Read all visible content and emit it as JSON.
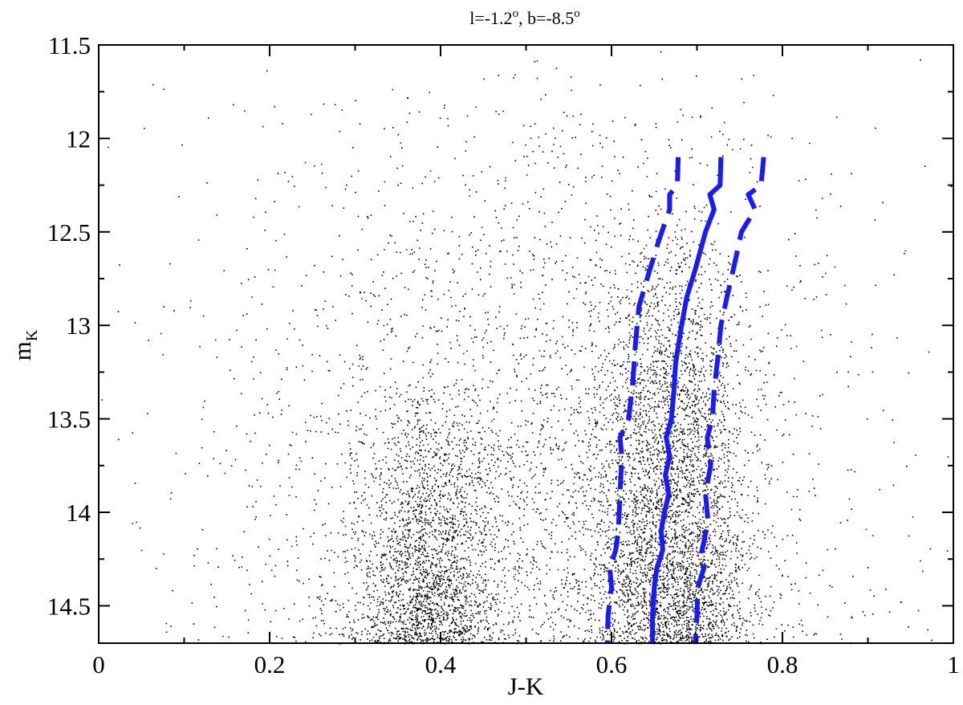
{
  "chart_data": {
    "type": "scatter",
    "title_main": "l=-1.2",
    "title_sup1": "o",
    "title_mid": ", b=-8.5",
    "title_sup2": "o",
    "xlabel": "J-K",
    "ylabel_main": "m",
    "ylabel_sub": "K",
    "xlim": [
      0,
      1
    ],
    "ylim": [
      11.5,
      14.7
    ],
    "y_inverted": true,
    "x_ticks": [
      0,
      0.2,
      0.4,
      0.6,
      0.8,
      1
    ],
    "x_tick_labels": [
      "0",
      "0.2",
      "0.4",
      "0.6",
      "0.8",
      "1"
    ],
    "y_ticks": [
      11.5,
      12,
      12.5,
      13,
      13.5,
      14,
      14.5
    ],
    "y_tick_labels": [
      "11.5",
      "12",
      "12.5",
      "13",
      "13.5",
      "14",
      "14.5"
    ],
    "grid": false,
    "legend": "none",
    "colors": {
      "points": "#000000",
      "ridge": "#1a1aff"
    },
    "scatter_density": {
      "description_free": true,
      "components": [
        {
          "x_mean": 0.385,
          "x_sd": 0.04,
          "y_min": 13.3,
          "y_max": 14.7,
          "weight": 0.22
        },
        {
          "x_mean": 0.67,
          "x_sd": 0.045,
          "y_min": 12.3,
          "y_max": 14.7,
          "weight": 0.42
        },
        {
          "x_mean": 0.5,
          "x_sd": 0.18,
          "y_min": 11.5,
          "y_max": 14.7,
          "weight": 0.36
        }
      ]
    },
    "series": [
      {
        "style": "solid",
        "points": [
          [
            0.728,
            12.1
          ],
          [
            0.727,
            12.25
          ],
          [
            0.715,
            12.3
          ],
          [
            0.72,
            12.38
          ],
          [
            0.71,
            12.5
          ],
          [
            0.698,
            12.7
          ],
          [
            0.688,
            12.85
          ],
          [
            0.682,
            13.0
          ],
          [
            0.675,
            13.2
          ],
          [
            0.673,
            13.35
          ],
          [
            0.67,
            13.5
          ],
          [
            0.664,
            13.6
          ],
          [
            0.668,
            13.7
          ],
          [
            0.663,
            13.8
          ],
          [
            0.667,
            13.9
          ],
          [
            0.662,
            14.0
          ],
          [
            0.658,
            14.1
          ],
          [
            0.66,
            14.2
          ],
          [
            0.653,
            14.3
          ],
          [
            0.65,
            14.4
          ],
          [
            0.648,
            14.55
          ],
          [
            0.648,
            14.7
          ]
        ]
      },
      {
        "style": "dashed",
        "points": [
          [
            0.678,
            12.1
          ],
          [
            0.677,
            12.25
          ],
          [
            0.668,
            12.3
          ],
          [
            0.668,
            12.38
          ],
          [
            0.655,
            12.55
          ],
          [
            0.645,
            12.7
          ],
          [
            0.632,
            12.9
          ],
          [
            0.628,
            13.1
          ],
          [
            0.625,
            13.3
          ],
          [
            0.62,
            13.5
          ],
          [
            0.61,
            13.6
          ],
          [
            0.612,
            13.7
          ],
          [
            0.61,
            13.9
          ],
          [
            0.608,
            14.1
          ],
          [
            0.605,
            14.2
          ],
          [
            0.598,
            14.3
          ],
          [
            0.6,
            14.4
          ],
          [
            0.596,
            14.55
          ],
          [
            0.595,
            14.7
          ]
        ]
      },
      {
        "style": "dashed",
        "points": [
          [
            0.778,
            12.1
          ],
          [
            0.775,
            12.25
          ],
          [
            0.76,
            12.3
          ],
          [
            0.768,
            12.38
          ],
          [
            0.752,
            12.5
          ],
          [
            0.745,
            12.65
          ],
          [
            0.735,
            12.85
          ],
          [
            0.728,
            13.0
          ],
          [
            0.725,
            13.15
          ],
          [
            0.72,
            13.35
          ],
          [
            0.718,
            13.5
          ],
          [
            0.712,
            13.6
          ],
          [
            0.716,
            13.75
          ],
          [
            0.71,
            13.9
          ],
          [
            0.713,
            14.05
          ],
          [
            0.706,
            14.2
          ],
          [
            0.708,
            14.3
          ],
          [
            0.701,
            14.4
          ],
          [
            0.7,
            14.55
          ],
          [
            0.698,
            14.7
          ]
        ]
      }
    ]
  }
}
